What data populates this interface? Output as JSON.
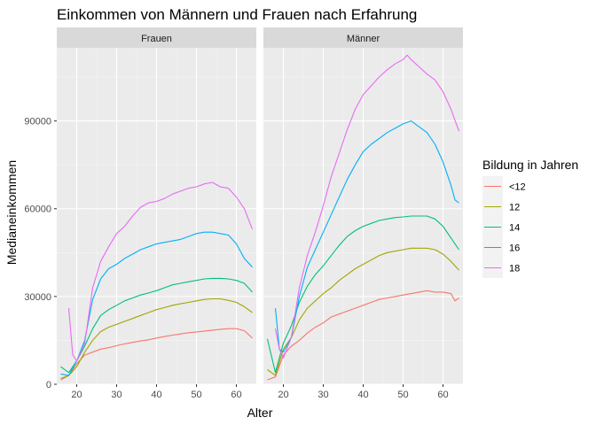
{
  "chart_data": {
    "type": "line",
    "title": "Einkommen von Männern und Frauen nach Erfahrung",
    "xlabel": "Alter",
    "ylabel": "Medianeinkommen",
    "xlim": [
      15,
      65
    ],
    "ylim": [
      0,
      115000
    ],
    "x_ticks": [
      20,
      30,
      40,
      50,
      60
    ],
    "y_ticks": [
      0,
      30000,
      60000,
      90000
    ],
    "y_tick_labels": [
      "0",
      "30000",
      "60000",
      "90000"
    ],
    "legend": {
      "title": "Bildung in Jahren",
      "position": "right",
      "entries": [
        {
          "label": "<12",
          "color": "#F8766D"
        },
        {
          "label": "12",
          "color": "#A3A500"
        },
        {
          "label": "14",
          "color": "#00BF7D"
        },
        {
          "label": "16",
          "color": "#00B0F6"
        },
        {
          "label": "18",
          "color": "#E76BF3"
        }
      ]
    },
    "facets": [
      {
        "label": "Frauen",
        "series": [
          {
            "name": "<12",
            "color": "#F8766D",
            "x": [
              16,
              18,
              20,
              22,
              24,
              26,
              28,
              30,
              32,
              34,
              36,
              38,
              40,
              42,
              44,
              46,
              48,
              50,
              52,
              54,
              56,
              58,
              60,
              62,
              64
            ],
            "y": [
              1500,
              3000,
              7000,
              10000,
              11000,
              12000,
              12500,
              13200,
              13800,
              14300,
              14800,
              15200,
              15800,
              16300,
              16800,
              17200,
              17600,
              17900,
              18200,
              18500,
              18800,
              19000,
              19000,
              18300,
              15800
            ]
          },
          {
            "name": "12",
            "color": "#A3A500",
            "x": [
              16,
              18,
              20,
              22,
              24,
              26,
              28,
              30,
              32,
              34,
              36,
              38,
              40,
              42,
              44,
              46,
              48,
              50,
              52,
              54,
              56,
              58,
              60,
              62,
              64
            ],
            "y": [
              2000,
              3000,
              6000,
              11000,
              15000,
              18000,
              19500,
              20500,
              21500,
              22500,
              23500,
              24500,
              25500,
              26200,
              27000,
              27500,
              28000,
              28500,
              29000,
              29200,
              29200,
              28700,
              28000,
              26500,
              24500
            ]
          },
          {
            "name": "14",
            "color": "#00BF7D",
            "x": [
              16,
              18,
              20,
              22,
              24,
              26,
              28,
              30,
              32,
              34,
              36,
              38,
              40,
              42,
              44,
              46,
              48,
              50,
              52,
              54,
              56,
              58,
              60,
              62,
              64
            ],
            "y": [
              6000,
              4000,
              8000,
              13000,
              19000,
              23500,
              25500,
              27000,
              28500,
              29500,
              30500,
              31200,
              32000,
              33000,
              34000,
              34500,
              35000,
              35500,
              36000,
              36200,
              36200,
              36000,
              35500,
              34500,
              31500
            ]
          },
          {
            "name": "16",
            "color": "#00B0F6",
            "x": [
              16,
              18,
              20,
              22,
              24,
              26,
              28,
              30,
              32,
              34,
              36,
              38,
              40,
              42,
              44,
              46,
              48,
              50,
              52,
              54,
              56,
              58,
              60,
              62,
              64
            ],
            "y": [
              3500,
              3000,
              8000,
              15000,
              29000,
              36000,
              39500,
              41000,
              43000,
              44500,
              46000,
              47000,
              48000,
              48500,
              49000,
              49500,
              50500,
              51500,
              52000,
              52000,
              51500,
              51000,
              48000,
              43000,
              40000
            ]
          },
          {
            "name": "18",
            "color": "#E76BF3",
            "x": [
              18,
              19,
              20,
              22,
              24,
              26,
              28,
              30,
              32,
              34,
              36,
              38,
              40,
              42,
              44,
              46,
              48,
              50,
              52,
              54,
              56,
              58,
              60,
              62,
              64
            ],
            "y": [
              26000,
              10000,
              8000,
              14000,
              33000,
              42000,
              47000,
              51500,
              54000,
              57500,
              60500,
              62000,
              62500,
              63500,
              65000,
              66000,
              67000,
              67500,
              68500,
              69000,
              67500,
              67000,
              64000,
              60000,
              53000
            ]
          }
        ]
      },
      {
        "label": "Männer",
        "series": [
          {
            "name": "<12",
            "color": "#F8766D",
            "x": [
              16,
              18,
              20,
              22,
              24,
              26,
              28,
              30,
              32,
              34,
              36,
              38,
              40,
              42,
              44,
              46,
              48,
              50,
              52,
              54,
              56,
              58,
              60,
              62,
              63,
              64
            ],
            "y": [
              1500,
              2500,
              10000,
              13000,
              15000,
              17500,
              19500,
              21000,
              23000,
              24000,
              25000,
              26000,
              27000,
              28000,
              29000,
              29500,
              30000,
              30500,
              31000,
              31500,
              32000,
              31500,
              31500,
              31000,
              28500,
              29500
            ]
          },
          {
            "name": "12",
            "color": "#A3A500",
            "x": [
              16,
              18,
              20,
              22,
              24,
              26,
              28,
              30,
              32,
              34,
              36,
              38,
              40,
              42,
              44,
              46,
              48,
              50,
              52,
              54,
              56,
              58,
              60,
              62,
              64
            ],
            "y": [
              5000,
              3000,
              12000,
              16000,
              22000,
              26000,
              28500,
              31000,
              33000,
              35500,
              37500,
              39500,
              41000,
              42500,
              44000,
              45000,
              45500,
              46000,
              46500,
              46500,
              46500,
              46000,
              44500,
              42000,
              39000
            ]
          },
          {
            "name": "14",
            "color": "#00BF7D",
            "x": [
              16,
              18,
              20,
              22,
              24,
              26,
              28,
              30,
              32,
              34,
              36,
              38,
              40,
              42,
              44,
              46,
              48,
              50,
              52,
              54,
              56,
              58,
              60,
              62,
              64
            ],
            "y": [
              15500,
              4000,
              14000,
              20000,
              28000,
              33500,
              37500,
              40500,
              44000,
              47500,
              50500,
              52500,
              54000,
              55000,
              56000,
              56500,
              57000,
              57200,
              57500,
              57500,
              57500,
              56500,
              54000,
              50000,
              46000
            ]
          },
          {
            "name": "16",
            "color": "#00B0F6",
            "x": [
              18,
              19,
              20,
              22,
              24,
              26,
              28,
              30,
              32,
              34,
              36,
              38,
              40,
              42,
              44,
              46,
              48,
              50,
              52,
              54,
              56,
              58,
              60,
              62,
              63,
              64
            ],
            "y": [
              26000,
              12000,
              11000,
              16000,
              30000,
              40000,
              46000,
              52000,
              58000,
              64000,
              70000,
              75000,
              79500,
              82000,
              84000,
              86000,
              87500,
              89000,
              90000,
              88000,
              86000,
              82000,
              76000,
              68000,
              63000,
              62000
            ]
          },
          {
            "name": "18",
            "color": "#E76BF3",
            "x": [
              18,
              19,
              20,
              22,
              24,
              26,
              28,
              30,
              32,
              34,
              36,
              38,
              40,
              42,
              44,
              46,
              48,
              50,
              51,
              52,
              54,
              56,
              58,
              60,
              62,
              64
            ],
            "y": [
              19000,
              12000,
              9000,
              16000,
              33000,
              44000,
              52000,
              61000,
              71000,
              79000,
              87000,
              94000,
              99000,
              102000,
              105000,
              107500,
              109500,
              111000,
              112500,
              111000,
              108500,
              106000,
              104000,
              100000,
              94000,
              86500
            ]
          }
        ]
      }
    ]
  }
}
